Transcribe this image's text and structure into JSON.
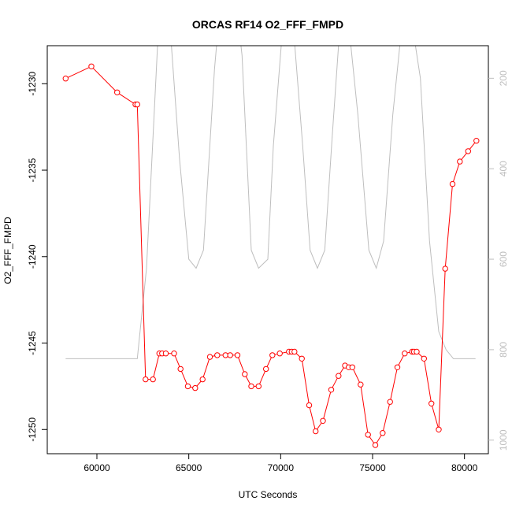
{
  "chart_data": {
    "type": "line",
    "title": "ORCAS RF14 O2_FFF_FMPD",
    "xlabel": "UTC Seconds",
    "ylabel": "O2_FFF_FMPD",
    "xlim": [
      57300,
      81300
    ],
    "ylim": [
      -1251.4,
      -1227.8
    ],
    "x_ticks": [
      60000,
      65000,
      70000,
      75000,
      80000
    ],
    "y_ticks": [
      -1250,
      -1245,
      -1240,
      -1235,
      -1230
    ],
    "secondary_axis": {
      "position": "right",
      "reversed": true,
      "ticks": [
        200,
        400,
        600,
        800,
        1000
      ],
      "lim": [
        1030,
        128
      ],
      "color": "#bebebe"
    },
    "series": [
      {
        "color": "#ff0000",
        "marker": "open-circle",
        "x": [
          58300,
          59700,
          61100,
          62100,
          62200,
          62650,
          63050,
          63400,
          63550,
          63750,
          64200,
          64550,
          64950,
          65350,
          65750,
          66150,
          66550,
          67000,
          67250,
          67650,
          68050,
          68400,
          68800,
          69200,
          69550,
          69950,
          70450,
          70600,
          70750,
          71150,
          71550,
          71900,
          72300,
          72750,
          73150,
          73500,
          73700,
          73900,
          74350,
          74750,
          75150,
          75550,
          75950,
          76350,
          76750,
          77150,
          77250,
          77400,
          77800,
          78200,
          78600,
          78950,
          79350,
          79750,
          80200,
          80650
        ],
        "y": [
          -1229.7,
          -1229.0,
          -1230.5,
          -1231.2,
          -1231.2,
          -1247.1,
          -1247.1,
          -1245.6,
          -1245.6,
          -1245.6,
          -1245.6,
          -1246.5,
          -1247.5,
          -1247.6,
          -1247.1,
          -1245.8,
          -1245.7,
          -1245.7,
          -1245.7,
          -1245.7,
          -1246.8,
          -1247.5,
          -1247.5,
          -1246.5,
          -1245.7,
          -1245.6,
          -1245.5,
          -1245.5,
          -1245.5,
          -1245.9,
          -1248.6,
          -1250.1,
          -1249.5,
          -1247.7,
          -1246.9,
          -1246.3,
          -1246.4,
          -1246.4,
          -1247.4,
          -1250.3,
          -1250.9,
          -1250.2,
          -1248.4,
          -1246.4,
          -1245.6,
          -1245.5,
          -1245.5,
          -1245.5,
          -1245.9,
          -1248.5,
          -1250.0,
          -1240.7,
          -1235.8,
          -1234.5,
          -1233.9,
          -1233.3
        ]
      },
      {
        "color": "#bebebe",
        "axis": "right",
        "x": [
          58300,
          62200,
          62700,
          63300,
          63500,
          63900,
          64500,
          65000,
          65400,
          65800,
          66400,
          66700,
          67100,
          67600,
          67900,
          68400,
          68800,
          69300,
          69600,
          70200,
          70600,
          71200,
          71600,
          72000,
          72400,
          72800,
          73300,
          73600,
          74200,
          74800,
          75200,
          75600,
          76100,
          76700,
          77000,
          77600,
          78100,
          78600,
          79000,
          79400,
          80600
        ],
        "y": [
          820,
          820,
          620,
          128,
          40,
          40,
          380,
          600,
          620,
          580,
          180,
          40,
          40,
          40,
          150,
          580,
          620,
          600,
          350,
          40,
          40,
          350,
          580,
          620,
          580,
          330,
          40,
          40,
          280,
          580,
          620,
          560,
          280,
          40,
          40,
          200,
          560,
          760,
          800,
          820,
          820
        ]
      }
    ]
  }
}
